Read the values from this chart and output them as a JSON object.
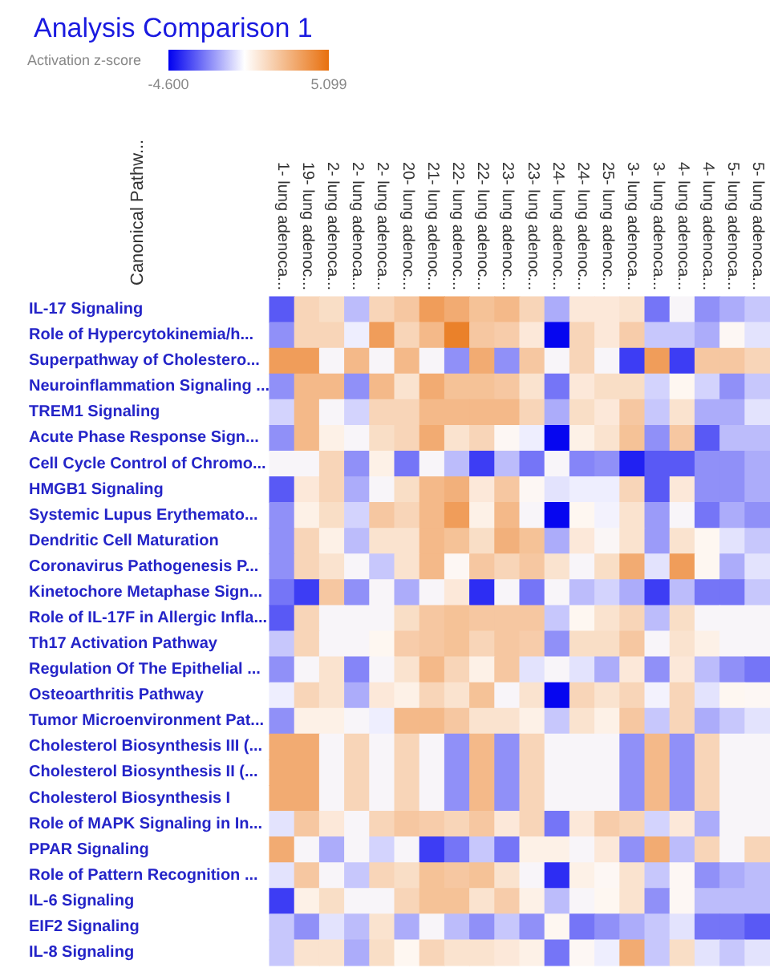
{
  "chart_data": {
    "type": "heatmap",
    "title": "Analysis Comparison 1",
    "clabel": "Activation z-score",
    "ylabel": "Canonical Pathw...",
    "clim": [
      -4.6,
      5.099
    ],
    "cticks": [
      {
        "value": -4.6,
        "label": "-4.600"
      },
      {
        "value": 5.099,
        "label": "5.099"
      }
    ],
    "categories": [
      "1- lung adenoca...",
      "19- lung adenoc...",
      "2- lung adenoca...",
      "2- lung adenoca...",
      "2- lung adenoca...",
      "20- lung adenoc...",
      "21- lung adenoc...",
      "22- lung adenoc...",
      "22- lung adenoc...",
      "23- lung adenoc...",
      "23- lung adenoc...",
      "24- lung adenoc...",
      "24- lung adenoc...",
      "25- lung adenoc...",
      "3- lung adenoca...",
      "3- lung adenoca...",
      "4- lung adenoca...",
      "4- lung adenoca...",
      "5- lung adenoca...",
      "5- lung adenoca..."
    ],
    "y_categories": [
      "IL-17 Signaling",
      "Role of Hypercytokinemia/h...",
      "Superpathway of Cholestero...",
      "Neuroinflammation Signaling ...",
      "TREM1 Signaling",
      "Acute Phase Response Sign...",
      "Cell Cycle Control of Chromo...",
      "HMGB1 Signaling",
      "Systemic Lupus Erythemato...",
      "Dendritic Cell Maturation",
      "Coronavirus Pathogenesis P...",
      "Kinetochore Metaphase Sign...",
      "Role of IL-17F in Allergic Infla...",
      "Th17 Activation Pathway",
      "Regulation Of The Epithelial ...",
      "Osteoarthritis Pathway",
      "Tumor Microenvironment Pat...",
      "Cholesterol Biosynthesis III (...",
      "Cholesterol Biosynthesis II (...",
      "Cholesterol Biosynthesis I",
      "Role of MAPK Signaling in In...",
      "PPAR Signaling",
      "Role of Pattern Recognition ...",
      "IL-6 Signaling",
      "EIF2 Signaling",
      "IL-8 Signaling"
    ],
    "cells": [
      [
        -3,
        1.5,
        1.2,
        -1.2,
        1.5,
        2,
        3.5,
        3,
        2.2,
        2.5,
        1.5,
        -1.5,
        0.8,
        0.8,
        1,
        -2.5,
        0,
        -2,
        -1.5,
        -1
      ],
      [
        -2,
        1.5,
        1.5,
        -0.3,
        3.5,
        1.5,
        2.5,
        4.5,
        2,
        1.8,
        0.8,
        -4.5,
        1.5,
        0.8,
        1.8,
        -1,
        -1,
        -1.5,
        0.2,
        -0.5
      ],
      [
        3.5,
        3.5,
        0,
        2.5,
        0,
        2.5,
        0,
        -2,
        3,
        -2,
        2,
        0,
        1.5,
        0,
        -3.5,
        3.5,
        -3.5,
        2,
        2,
        1.5
      ],
      [
        -2,
        2.5,
        2.5,
        -2,
        2.5,
        1,
        3,
        2.2,
        2.2,
        2,
        1,
        -2.5,
        0.8,
        1.2,
        1.2,
        -0.8,
        0.3,
        -0.8,
        -2,
        -1
      ],
      [
        -0.8,
        2.5,
        0,
        -0.8,
        1.5,
        1.5,
        2.5,
        2.5,
        2.5,
        2.5,
        1.5,
        -1.5,
        1.2,
        0.8,
        2,
        -1,
        1,
        -1.5,
        -1.5,
        -0.5
      ],
      [
        -2,
        2.5,
        0.5,
        0,
        1.2,
        1.5,
        3,
        1,
        1.5,
        0.2,
        -0.3,
        -4.5,
        0.5,
        1,
        2.2,
        -2,
        2,
        -3,
        -1.2,
        -1.2
      ],
      [
        0,
        0,
        1.5,
        -2,
        0.5,
        -2.5,
        0,
        -1.2,
        -3.5,
        -1.2,
        -2.5,
        0,
        -2.2,
        -2,
        -4,
        -3,
        -3,
        -2,
        -2,
        -1.5
      ],
      [
        -3,
        0.8,
        1.5,
        -1.5,
        0,
        1.2,
        2.5,
        2.8,
        0.8,
        2,
        0.2,
        -0.5,
        -0.3,
        -0.3,
        1.5,
        -3,
        0.8,
        -2,
        -2,
        -1.5
      ],
      [
        -2,
        0.5,
        1.2,
        -0.8,
        2,
        1.5,
        2.5,
        3.5,
        0.5,
        2.5,
        0,
        -4.5,
        0.3,
        -0.2,
        1,
        -1.8,
        0,
        -2.5,
        -1.5,
        -2
      ],
      [
        -2,
        1.5,
        0.5,
        -1.2,
        1,
        1,
        2.5,
        2.2,
        1.2,
        2.8,
        2.2,
        -1.5,
        0.8,
        0.1,
        1,
        -1.8,
        1,
        0.3,
        -0.5,
        -1
      ],
      [
        -2,
        1.5,
        1,
        0,
        -1,
        1,
        2.5,
        0.2,
        2,
        1.5,
        2,
        1,
        0,
        1.2,
        3,
        -0.5,
        3.5,
        0.3,
        -1.5,
        -0.5
      ],
      [
        -2.5,
        -3.5,
        2,
        -2,
        0,
        -1.5,
        0,
        0.8,
        -3.8,
        0,
        -2.5,
        0,
        -1.2,
        -0.8,
        -1.5,
        -3.5,
        -1.2,
        -2.5,
        -2.5,
        -1
      ],
      [
        -3,
        1.5,
        0,
        0,
        0,
        1.2,
        2,
        2.2,
        2,
        2,
        2,
        -1,
        0.3,
        1,
        1.5,
        -1.2,
        1.2,
        0,
        0,
        0
      ],
      [
        -1,
        1.5,
        0,
        0,
        0.3,
        1.8,
        2,
        2.2,
        1.5,
        2,
        1.8,
        -2,
        1.2,
        1.2,
        2,
        0,
        1,
        0.5,
        0,
        0
      ],
      [
        -2,
        0,
        1,
        -2.2,
        0,
        1,
        2.5,
        1.5,
        0.5,
        2,
        -0.5,
        0,
        -0.5,
        -1.5,
        0.8,
        -2,
        0.8,
        -1.2,
        -2,
        -2.5
      ],
      [
        -0.3,
        1.5,
        1,
        -1.5,
        0.8,
        0.5,
        1.5,
        1,
        2.2,
        0,
        1,
        -4.5,
        1.5,
        1,
        1.5,
        -0.2,
        1.5,
        -0.5,
        0.3,
        0.2
      ],
      [
        -2,
        0.5,
        0.5,
        0,
        -0.3,
        2.5,
        2.5,
        2,
        1,
        1,
        0.5,
        -1,
        1,
        0.5,
        2,
        -1,
        1.5,
        -1.5,
        -1,
        -0.5
      ],
      [
        3,
        3,
        0,
        1.5,
        0,
        1.5,
        0,
        -2,
        2.5,
        -2,
        1.5,
        0,
        0,
        0,
        -2,
        2.5,
        -2,
        1.5,
        0,
        0
      ],
      [
        3,
        3,
        0,
        1.5,
        0,
        1.5,
        0,
        -2,
        2.5,
        -2,
        1.5,
        0,
        0,
        0,
        -2,
        2.5,
        -2,
        1.5,
        0,
        0
      ],
      [
        3,
        3,
        0,
        1.5,
        0,
        1.5,
        0,
        -2,
        2.5,
        -2,
        1.5,
        0,
        0,
        0,
        -2,
        2.5,
        -2,
        1.5,
        0,
        0
      ],
      [
        -0.5,
        2,
        0.8,
        0,
        1.5,
        2,
        1.8,
        1.5,
        2,
        0.8,
        1.5,
        -2.5,
        0.8,
        1.8,
        1.5,
        -0.8,
        0.8,
        -1.5,
        0,
        0
      ],
      [
        3,
        0,
        -1.5,
        0,
        -0.8,
        0,
        -3.5,
        -2.5,
        -1,
        -2.5,
        0.5,
        0.5,
        0,
        0.8,
        -2,
        3,
        -1.2,
        1.5,
        0,
        1.5
      ],
      [
        -0.5,
        2,
        0,
        -1,
        1.5,
        1.2,
        2.2,
        2,
        2.2,
        1,
        0,
        -3.8,
        0.5,
        0.2,
        1,
        -1,
        0.2,
        -2,
        -1.5,
        -1.2
      ],
      [
        -3.5,
        0.5,
        1.2,
        0,
        0,
        1.5,
        2.2,
        2.2,
        1,
        1.8,
        0.5,
        -1.2,
        0,
        0.3,
        1,
        -2,
        0.2,
        -1.2,
        -1.2,
        -1.2
      ],
      [
        -1,
        -2,
        -0.5,
        -1.2,
        1,
        -1.5,
        0,
        -1.2,
        -2,
        -1,
        -2,
        0.3,
        -2.5,
        -2,
        -1.5,
        -1,
        -0.5,
        -2.5,
        -2.5,
        -3
      ],
      [
        -1,
        1,
        1,
        -1.5,
        1.2,
        0.3,
        1.5,
        1,
        1,
        0.8,
        0.5,
        -2.5,
        0.2,
        -0.3,
        3,
        -1,
        1.2,
        -0.5,
        -1,
        -0.5
      ]
    ]
  }
}
